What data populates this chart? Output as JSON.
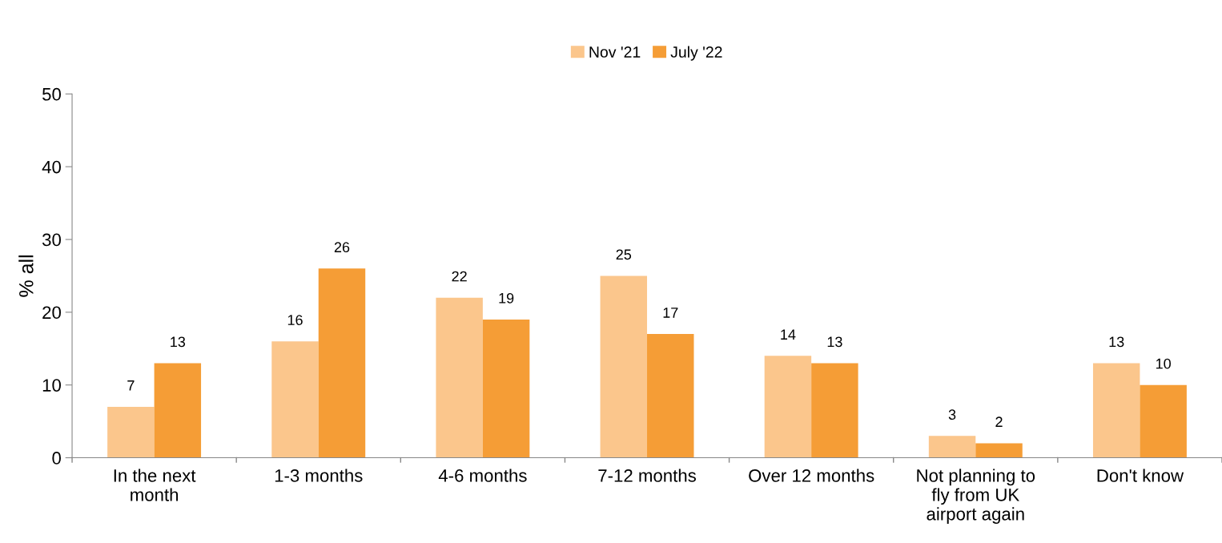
{
  "chart_data": {
    "type": "bar",
    "categories": [
      "In the next month",
      "1-3 months",
      "4-6 months",
      "7-12 months",
      "Over 12 months",
      "Not planning to fly from UK airport again",
      "Don't know"
    ],
    "series": [
      {
        "name": "Nov '21",
        "color": "#fbc68c",
        "values": [
          7,
          16,
          22,
          25,
          14,
          3,
          13
        ]
      },
      {
        "name": "July '22",
        "color": "#f59d36",
        "values": [
          13,
          26,
          19,
          17,
          13,
          2,
          10
        ]
      }
    ],
    "ylabel": "% all",
    "ylim": [
      0,
      50
    ],
    "yticks": [
      0,
      10,
      20,
      30,
      40,
      50
    ],
    "data_labels": true,
    "grid": false,
    "legend": "top"
  }
}
